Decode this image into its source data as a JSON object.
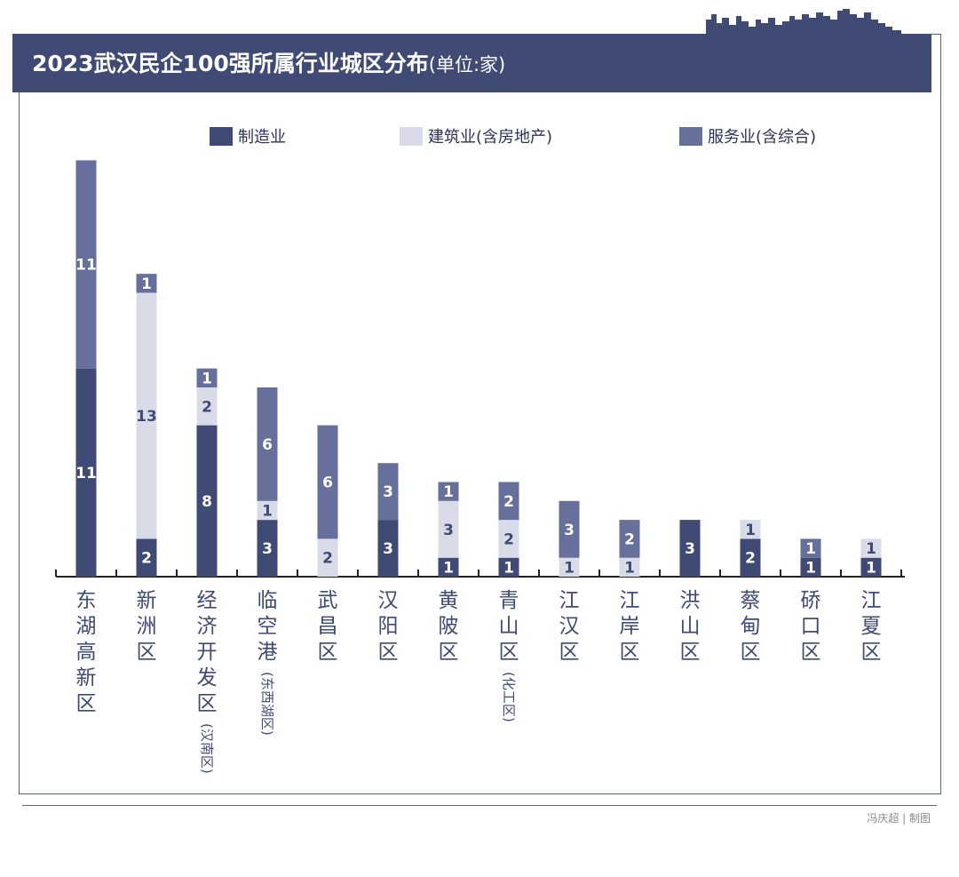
{
  "chart_data": {
    "type": "bar",
    "stacked": true,
    "title": "2023武汉民企100强所属行业城区分布",
    "unit": "(单位:家)",
    "categories": [
      "东湖高新区",
      "新洲区",
      "经济开发区",
      "临空港",
      "武昌区",
      "汉阳区",
      "黄陂区",
      "青山区",
      "江汉区",
      "江岸区",
      "洪山区",
      "蔡甸区",
      "硚口区",
      "江夏区"
    ],
    "category_notes": [
      "",
      "",
      "(汉南区)",
      "(东西湖区)",
      "",
      "",
      "",
      "(化工区)",
      "",
      "",
      "",
      "",
      "",
      ""
    ],
    "series": [
      {
        "name": "制造业",
        "color": "#3f4a75",
        "label_color": "#ffffff",
        "values": [
          11,
          2,
          8,
          3,
          0,
          3,
          1,
          1,
          0,
          0,
          3,
          2,
          1,
          1
        ]
      },
      {
        "name": "建筑业(含房地产)",
        "color": "#d9dce8",
        "label_color": "#3f4a75",
        "values": [
          0,
          13,
          2,
          1,
          2,
          0,
          3,
          2,
          1,
          1,
          0,
          1,
          0,
          1
        ]
      },
      {
        "name": "服务业(含综合)",
        "color": "#66709a",
        "label_color": "#ffffff",
        "values": [
          11,
          1,
          1,
          6,
          6,
          3,
          1,
          2,
          3,
          2,
          0,
          0,
          1,
          0
        ]
      }
    ],
    "ylim": [
      0,
      22
    ]
  },
  "credit": "冯庆超 | 制图",
  "colors": {
    "header": "#3f4a75",
    "frame": "#5a6485",
    "axis": "#222222"
  }
}
